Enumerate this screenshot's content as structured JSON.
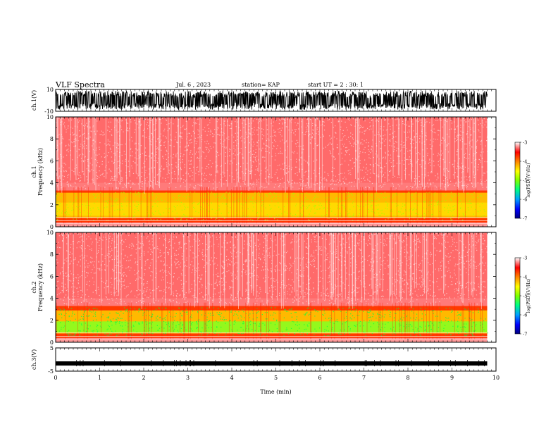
{
  "header": {
    "title": "VLF Spectra",
    "date": "Jul. 6 , 2023",
    "station": "station= KAP",
    "start": "start UT = 2 : 30: 1"
  },
  "chart_data": {
    "type": "heatmap",
    "x_axis": {
      "label": "Time (min)",
      "range": [
        0,
        10
      ],
      "ticks": [
        "0",
        "1",
        "2",
        "3",
        "4",
        "5",
        "6",
        "7",
        "8",
        "9",
        "10"
      ]
    },
    "panels": [
      {
        "name": "ch1-waveform",
        "type": "line",
        "ylabel": "ch.1(V)",
        "ylim": [
          -10,
          10
        ],
        "yticks": [
          "10",
          "-10"
        ],
        "data_end_min": 9.8
      },
      {
        "name": "ch1-spectrogram",
        "type": "heatmap",
        "ylabel_line1": "ch.1",
        "ylabel_line2": "Frequency (kHz)",
        "ylim": [
          0,
          10
        ],
        "yticks": [
          "0",
          "2",
          "4",
          "6",
          "8",
          "10"
        ],
        "data_end_min": 9.8,
        "colorbar": {
          "label": "log(PSD)(V²/Hz)",
          "range": [
            -7,
            -3
          ],
          "ticks": [
            "-3",
            "-4",
            "-5",
            "-6",
            "-7"
          ]
        }
      },
      {
        "name": "ch2-spectrogram",
        "type": "heatmap",
        "ylabel_line1": "ch.2",
        "ylabel_line2": "Frequency (kHz)",
        "ylim": [
          0,
          10
        ],
        "yticks": [
          "0",
          "2",
          "4",
          "6",
          "8",
          "10"
        ],
        "data_end_min": 9.8,
        "colorbar": {
          "label": "log(PSD)(V²/Hz)",
          "range": [
            -7,
            -3
          ],
          "ticks": [
            "-3",
            "-4",
            "-5",
            "-6",
            "-7"
          ]
        }
      },
      {
        "name": "ch3-waveform",
        "type": "line",
        "ylabel": "ch.3(V)",
        "ylim": [
          -5,
          5
        ],
        "yticks": [
          "5",
          "-5"
        ],
        "baseline_value": -1.7,
        "data_end_min": 9.8
      }
    ],
    "colorscale": [
      "#000080",
      "#0000ff",
      "#00a0ff",
      "#00ff80",
      "#80ff00",
      "#ffff00",
      "#ff8000",
      "#ff0000",
      "#ffffff"
    ]
  }
}
